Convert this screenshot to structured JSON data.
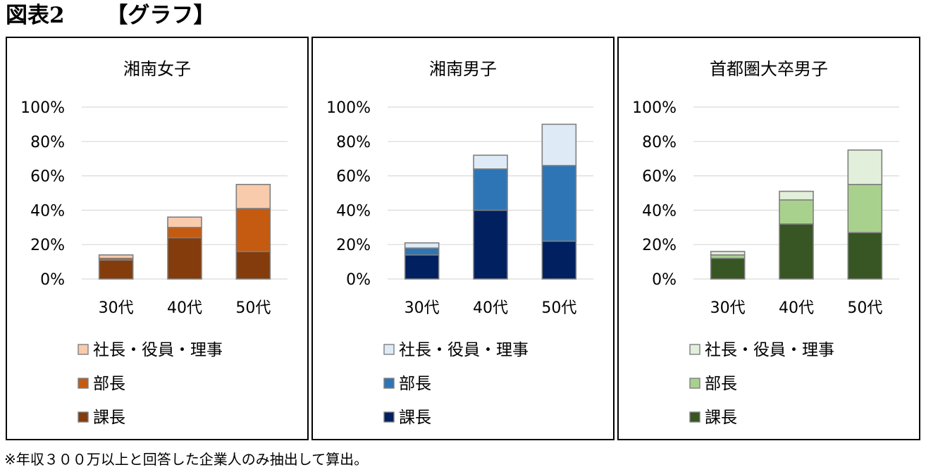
{
  "figure": {
    "label": "図表2",
    "subtitle": "【グラフ】",
    "footnote": "※年収３００万以上と回答した企業人のみ抽出して算出。"
  },
  "chart_data": [
    {
      "type": "bar",
      "stacked": true,
      "title": "湘南女子",
      "categories": [
        "30代",
        "40代",
        "50代"
      ],
      "ylim": [
        0,
        100
      ],
      "yticks": [
        "0%",
        "20%",
        "40%",
        "60%",
        "80%",
        "100%"
      ],
      "grid": true,
      "legend_position": "bottom",
      "series": [
        {
          "name": "課長",
          "color": "#843c0c",
          "values": [
            11,
            24,
            16
          ]
        },
        {
          "name": "部長",
          "color": "#c55a11",
          "values": [
            1,
            6,
            25
          ]
        },
        {
          "name": "社長・役員・理事",
          "color": "#f8cbad",
          "values": [
            2,
            6,
            14
          ]
        }
      ]
    },
    {
      "type": "bar",
      "stacked": true,
      "title": "湘南男子",
      "categories": [
        "30代",
        "40代",
        "50代"
      ],
      "ylim": [
        0,
        100
      ],
      "yticks": [
        "0%",
        "20%",
        "40%",
        "60%",
        "80%",
        "100%"
      ],
      "grid": true,
      "legend_position": "bottom",
      "series": [
        {
          "name": "課長",
          "color": "#002060",
          "values": [
            14,
            40,
            22
          ]
        },
        {
          "name": "部長",
          "color": "#2e75b6",
          "values": [
            4,
            24,
            44
          ]
        },
        {
          "name": "社長・役員・理事",
          "color": "#deebf7",
          "values": [
            3,
            8,
            24
          ]
        }
      ]
    },
    {
      "type": "bar",
      "stacked": true,
      "title": "首都圏大卒男子",
      "categories": [
        "30代",
        "40代",
        "50代"
      ],
      "ylim": [
        0,
        100
      ],
      "yticks": [
        "0%",
        "20%",
        "40%",
        "60%",
        "80%",
        "100%"
      ],
      "grid": true,
      "legend_position": "bottom",
      "series": [
        {
          "name": "課長",
          "color": "#375623",
          "values": [
            12,
            32,
            27
          ]
        },
        {
          "name": "部長",
          "color": "#a9d18e",
          "values": [
            2,
            14,
            28
          ]
        },
        {
          "name": "社長・役員・理事",
          "color": "#e2efda",
          "values": [
            2,
            5,
            20
          ]
        }
      ]
    }
  ]
}
